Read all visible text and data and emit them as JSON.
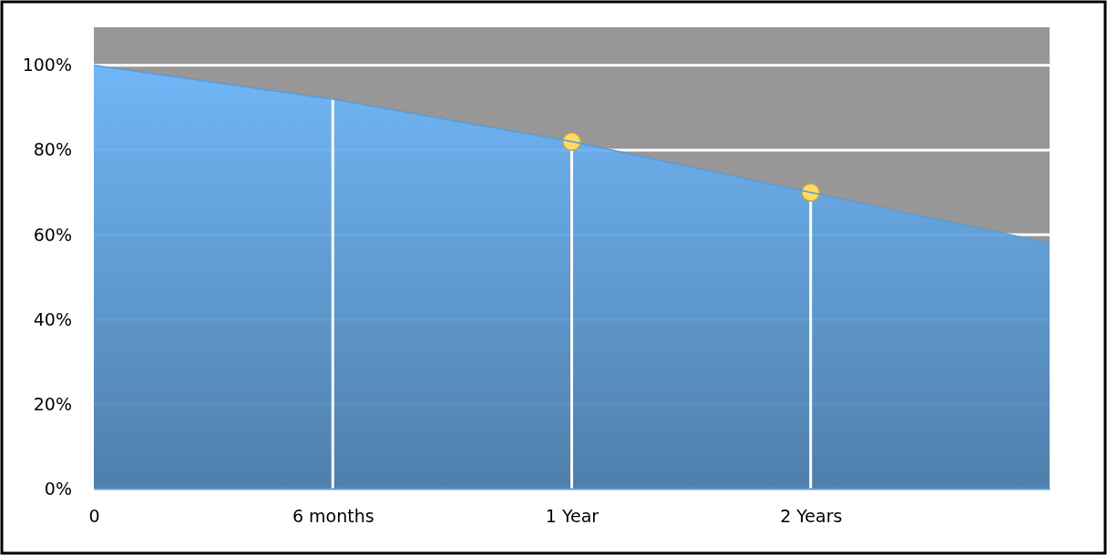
{
  "chart_data": {
    "type": "area",
    "categories": [
      "0",
      "6 months",
      "1 Year",
      "2 Years",
      null
    ],
    "series": [
      {
        "color": "#5b9bd5",
        "values": [
          100,
          92,
          82,
          70,
          58
        ]
      },
      {
        "type": "scatter",
        "color": "#ffd966",
        "marker": "circle",
        "x": [
          "1 Year",
          "2 Years"
        ],
        "values": [
          82,
          70
        ]
      }
    ],
    "ylim": [
      0,
      109
    ],
    "yticks": [
      {
        "value": 0,
        "label": "0%"
      },
      {
        "value": 20,
        "label": "20%"
      },
      {
        "value": 40,
        "label": "40%"
      },
      {
        "value": 60,
        "label": "60%"
      },
      {
        "value": 80,
        "label": "80%"
      },
      {
        "value": 100,
        "label": "100%"
      }
    ],
    "grid": true
  }
}
